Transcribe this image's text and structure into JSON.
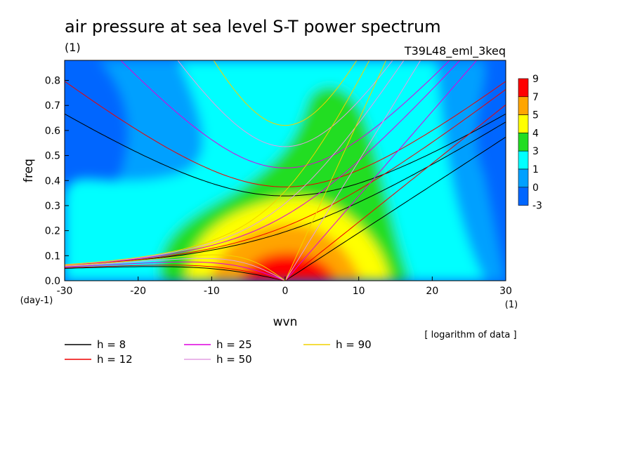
{
  "chart_data": {
    "type": "heatmap",
    "title": "air pressure at sea level S-T power spectrum",
    "title_units": "(1)",
    "experiment": "T39L48_eml_3keq",
    "xlabel": "wvn",
    "ylabel": "freq",
    "x_units": "(1)",
    "y_units": "(day-1)",
    "xlim": [
      -30,
      30
    ],
    "ylim": [
      0,
      0.88
    ],
    "xticks": [
      -30,
      -20,
      -10,
      0,
      10,
      20,
      30
    ],
    "yticks": [
      0.0,
      0.1,
      0.2,
      0.3,
      0.4,
      0.5,
      0.6,
      0.7,
      0.8
    ],
    "ytick_labels": [
      "0.0",
      "0.1",
      "0.2",
      "0.3",
      "0.4",
      "0.5",
      "0.6",
      "0.7",
      "0.8"
    ],
    "note": "[ logarithm of data ]",
    "colorbar": {
      "levels": [
        "9",
        "7",
        "5",
        "4",
        "3",
        "1",
        "0",
        "-3"
      ],
      "colors": [
        "#ff0000",
        "#ffa500",
        "#ffff00",
        "#22dd22",
        "#00ffff",
        "#00a0ff",
        "#0066ff"
      ]
    },
    "dispersion_curves": [
      {
        "h": 8,
        "label": "h =  8",
        "color": "#000000"
      },
      {
        "h": 12,
        "label": "h = 12",
        "color": "#ee0000"
      },
      {
        "h": 25,
        "label": "h = 25",
        "color": "#dd00dd"
      },
      {
        "h": 50,
        "label": "h = 50",
        "color": "#e39de3"
      },
      {
        "h": 90,
        "label": "h = 90",
        "color": "#f2d200"
      }
    ]
  }
}
